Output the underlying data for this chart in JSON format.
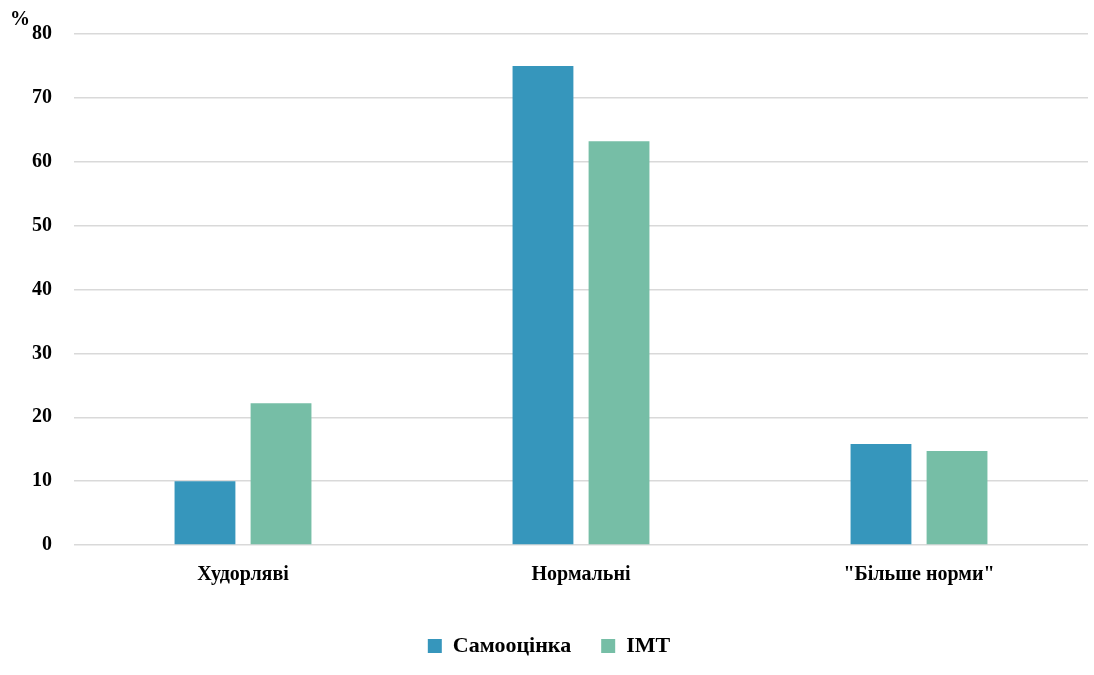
{
  "chart_data": {
    "type": "bar",
    "ylabel": "%",
    "categories": [
      "Худорляві",
      "Нормальні",
      "\"Більше норми\""
    ],
    "series": [
      {
        "name": "Самооцінка",
        "color": "#3696bc",
        "values": [
          10,
          75,
          15.8
        ]
      },
      {
        "name": "ІМТ",
        "color": "#76bea6",
        "values": [
          22.2,
          63.2,
          14.7
        ]
      }
    ],
    "ylim": [
      0,
      80
    ],
    "yticks": [
      0,
      10,
      20,
      30,
      40,
      50,
      60,
      70,
      80
    ],
    "grid": "y",
    "legend": "bottom"
  }
}
